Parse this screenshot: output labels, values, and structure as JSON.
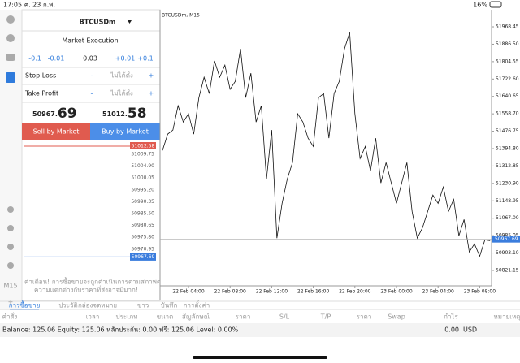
{
  "status_bar": {
    "time": "17:05",
    "date": "ศ. 23 ก.พ.",
    "battery": "16%"
  },
  "order_panel": {
    "symbol": "BTCUSDm",
    "execution": "Market Execution",
    "volume_steps": [
      "-0.1",
      "-0.01",
      "0.03",
      "+0.01",
      "+0.1"
    ],
    "stop_loss": {
      "label": "Stop Loss",
      "minus": "-",
      "placeholder": "ไม่ได้ตั้ง",
      "plus": "+"
    },
    "take_profit": {
      "label": "Take Profit",
      "minus": "-",
      "placeholder": "ไม่ได้ตั้ง",
      "plus": "+"
    },
    "bid": {
      "main": "50967.",
      "big": "69"
    },
    "ask": {
      "main": "51012.",
      "big": "58"
    },
    "sell_button": "Sell by Market",
    "buy_button": "Buy by Market",
    "ladder_ask": "51012.58",
    "ladder": [
      "51009.75",
      "51004.90",
      "51000.05",
      "50995.20",
      "50990.35",
      "50985.50",
      "50980.65",
      "50975.80",
      "50970.95"
    ],
    "ladder_bid": "50967.69",
    "warning": [
      "คำเตือน! การซื้อขายจะถูกดำเนินการตามสภาพตลาด",
      "ความแตกต่างกับราคาที่ส่งอาจมีมาก!"
    ]
  },
  "timeframe": "M15",
  "chart_data": {
    "type": "line",
    "title": "BTCUSDm, M15",
    "color": "#111111",
    "categories": [
      null,
      null,
      null,
      null,
      null,
      "22 Feb 04:00",
      null,
      null,
      null,
      null,
      null,
      null,
      null,
      "22 Feb 08:00",
      null,
      null,
      null,
      null,
      null,
      null,
      null,
      "22 Feb 12:00",
      null,
      null,
      null,
      null,
      null,
      null,
      null,
      "22 Feb 16:00",
      null,
      null,
      null,
      null,
      null,
      null,
      null,
      "22 Feb 20:00",
      null,
      null,
      null,
      null,
      null,
      null,
      null,
      "23 Feb 00:00",
      null,
      null,
      null,
      null,
      null,
      null,
      null,
      "23 Feb 04:00",
      null,
      null,
      null,
      null,
      null,
      null,
      null,
      "23 Feb 08:00",
      null,
      null
    ],
    "values": [
      51386,
      51463,
      51482,
      51597,
      51520,
      51559,
      51463,
      51635,
      51731,
      51654,
      51808,
      51731,
      51788,
      51674,
      51712,
      51865,
      51635,
      51750,
      51520,
      51597,
      51252,
      51482,
      50973,
      51137,
      51252,
      51329,
      51559,
      51520,
      51444,
      51405,
      51635,
      51654,
      51444,
      51654,
      51712,
      51865,
      51942,
      51559,
      51348,
      51405,
      51290,
      51444,
      51233,
      51329,
      51233,
      51137,
      51233,
      51329,
      51099,
      50973,
      51022,
      51099,
      51176,
      51137,
      51214,
      51099,
      51156,
      50984,
      51061,
      50908,
      50946,
      50888,
      50965,
      50961
    ],
    "ylim": [
      50748.4,
      52037.4
    ],
    "yticks": [
      51968.45,
      {
        "value": 51886.5,
        "label": "51886.50"
      },
      51804.55,
      {
        "value": 51722.6,
        "label": "51722.60"
      },
      51640.65,
      {
        "value": 51558.7,
        "label": "51558.70"
      },
      51476.75,
      {
        "value": 51394.8,
        "label": "51394.80"
      },
      51312.85,
      {
        "value": 51230.9,
        "label": "51230.90"
      },
      51148.95,
      {
        "value": 51067,
        "label": "51067.00"
      },
      50985.05,
      {
        "value": 50903.1,
        "label": "50903.10"
      },
      50821.15
    ],
    "current_price": 50967.69,
    "current_price_color": "#3b7ddd"
  },
  "tabs": [
    "การซื้อขาย",
    "ประวัติ",
    "กล่องจดหมาย",
    "ข่าว",
    "บันทึก",
    "การตั้งค่า"
  ],
  "table_header": [
    "คำสั่ง",
    "เวลา",
    "ประเภท",
    "ขนาด",
    "สัญลักษณ์",
    "ราคา",
    "S/L",
    "T/P",
    "ราคา",
    "Swap",
    "กำไร",
    "หมายเหตุ"
  ],
  "balance": {
    "text": "Balance: 125.06 Equity: 125.06 หลักประกัน: 0.00 ฟรี: 125.06 Level: 0.00%",
    "profit": "0.00",
    "currency": "USD"
  }
}
